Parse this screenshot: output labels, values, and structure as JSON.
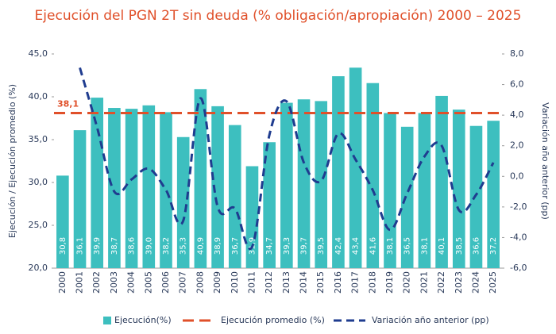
{
  "chart_data": {
    "type": "bar_line",
    "title": "Ejecución del PGN 2T sin deuda (% obligación/apropiación) 2000 – 2025",
    "y_label": "Ejecución / Ejecución promedio (%)",
    "y2_label": "Variación año anterior (pp)",
    "categories": [
      "2000",
      "2001",
      "2002",
      "2003",
      "2004",
      "2005",
      "2006",
      "2007",
      "2008",
      "2009",
      "2010",
      "2011",
      "2012",
      "2013",
      "2014",
      "2015",
      "2016",
      "2017",
      "2018",
      "2019",
      "2020",
      "2021",
      "2022",
      "2023",
      "2024",
      "2025"
    ],
    "series": [
      {
        "name": "Ejecución(%)",
        "type": "bar",
        "color": "#3dbfbf",
        "values": [
          30.8,
          36.1,
          39.9,
          38.7,
          38.6,
          39.0,
          38.2,
          35.3,
          40.9,
          38.9,
          36.7,
          31.9,
          34.7,
          39.3,
          39.7,
          39.5,
          42.4,
          43.4,
          41.6,
          38.1,
          36.5,
          38.1,
          40.1,
          38.5,
          36.6,
          37.2
        ],
        "value_labels": [
          "30,8",
          "36,1",
          "39,9",
          "38,7",
          "38,6",
          "39,0",
          "38,2",
          "35,3",
          "40,9",
          "38,9",
          "36,7",
          "31,9",
          "34,7",
          "39,3",
          "39,7",
          "39,5",
          "42,4",
          "43,4",
          "41,6",
          "38,1",
          "36,5",
          "38,1",
          "40,1",
          "38,5",
          "36,6",
          "37,2"
        ]
      },
      {
        "name": "Ejecución promedio (%)",
        "type": "hline",
        "color": "#e0502a",
        "value": 38.1,
        "value_label": "38,1"
      },
      {
        "name": "Variación año anterior (pp)",
        "type": "line",
        "axis": "y2",
        "color": "#1f3c8f",
        "values": [
          null,
          7.1,
          3.2,
          -1.0,
          -0.2,
          0.5,
          -0.9,
          -2.9,
          5.1,
          -2.0,
          -2.1,
          -4.6,
          2.7,
          4.9,
          0.9,
          -0.3,
          2.8,
          1.1,
          -0.9,
          -3.5,
          -1.1,
          1.3,
          2.0,
          -2.2,
          -1.2,
          0.9
        ]
      }
    ],
    "ylim": [
      20,
      45
    ],
    "yticks": [
      {
        "value": 20,
        "label": "20,0"
      },
      {
        "value": 25,
        "label": "25,0"
      },
      {
        "value": 30,
        "label": "30,0"
      },
      {
        "value": 35,
        "label": "35,0"
      },
      {
        "value": 40,
        "label": "40,0"
      },
      {
        "value": 45,
        "label": "45,0"
      }
    ],
    "y2lim": [
      -6,
      8
    ],
    "y2ticks": [
      {
        "value": -6,
        "label": "-6,0"
      },
      {
        "value": -4,
        "label": "-4,0"
      },
      {
        "value": -2,
        "label": "-2,0"
      },
      {
        "value": 0,
        "label": "0,0"
      },
      {
        "value": 2,
        "label": "2,0"
      },
      {
        "value": 4,
        "label": "4,0"
      },
      {
        "value": 6,
        "label": "6,0"
      },
      {
        "value": 8,
        "label": "8,0"
      }
    ]
  }
}
